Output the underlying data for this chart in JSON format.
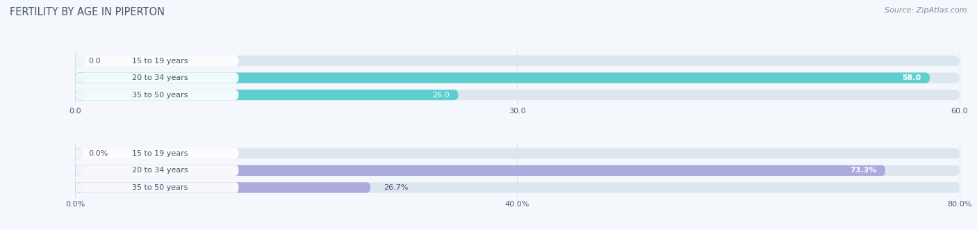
{
  "title": "FERTILITY BY AGE IN PIPERTON",
  "source": "Source: ZipAtlas.com",
  "top_chart": {
    "categories": [
      "15 to 19 years",
      "20 to 34 years",
      "35 to 50 years"
    ],
    "values": [
      0.0,
      58.0,
      26.0
    ],
    "max_value": 60.0,
    "x_ticks": [
      0.0,
      30.0,
      60.0
    ],
    "x_tick_labels": [
      "0.0",
      "30.0",
      "60.0"
    ],
    "bar_color_dark": "#1aafaf",
    "bar_color_light": "#5ecfcf",
    "bar_bg_color": "#dde6ef",
    "value_labels": [
      "0.0",
      "58.0",
      "26.0"
    ]
  },
  "bottom_chart": {
    "categories": [
      "15 to 19 years",
      "20 to 34 years",
      "35 to 50 years"
    ],
    "values": [
      0.0,
      73.3,
      26.7
    ],
    "max_value": 80.0,
    "x_ticks": [
      0.0,
      40.0,
      80.0
    ],
    "x_tick_labels": [
      "0.0%",
      "40.0%",
      "80.0%"
    ],
    "bar_color_dark": "#7777cc",
    "bar_color_light": "#aaaadd",
    "bar_bg_color": "#dde6ef",
    "value_labels": [
      "0.0%",
      "73.3%",
      "26.7%"
    ]
  },
  "label_color": "#555577",
  "title_color": "#445566",
  "source_color": "#888899",
  "background_color": "#f4f7fb",
  "white_pill_color": "#ffffff",
  "white_pill_text_color": "#445566"
}
